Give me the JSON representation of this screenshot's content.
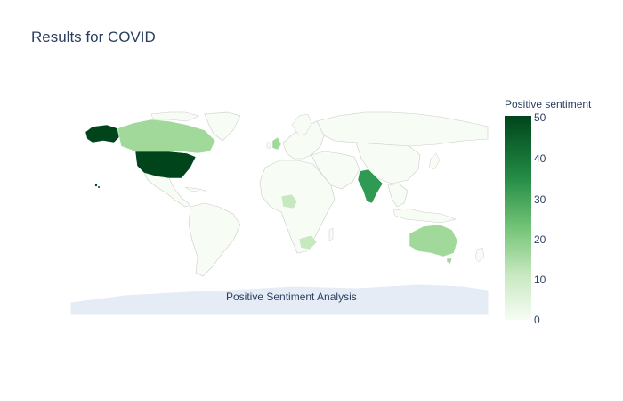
{
  "title": "Results for COVID",
  "colorbar": {
    "title": "Positive sentiment",
    "ticks": [
      "50",
      "40",
      "30",
      "20",
      "10",
      "0"
    ],
    "range": [
      0,
      51
    ]
  },
  "annotation": "Positive Sentiment Analysis",
  "map_data": {
    "projection": "equirectangular",
    "colorscale": "Greens",
    "countries": [
      {
        "name": "United States",
        "value": 51
      },
      {
        "name": "India",
        "value": 33
      },
      {
        "name": "Australia",
        "value": 20
      },
      {
        "name": "Canada",
        "value": 18
      },
      {
        "name": "United Kingdom",
        "value": 18
      },
      {
        "name": "Nigeria",
        "value": 15
      },
      {
        "name": "South Africa",
        "value": 10
      }
    ]
  }
}
